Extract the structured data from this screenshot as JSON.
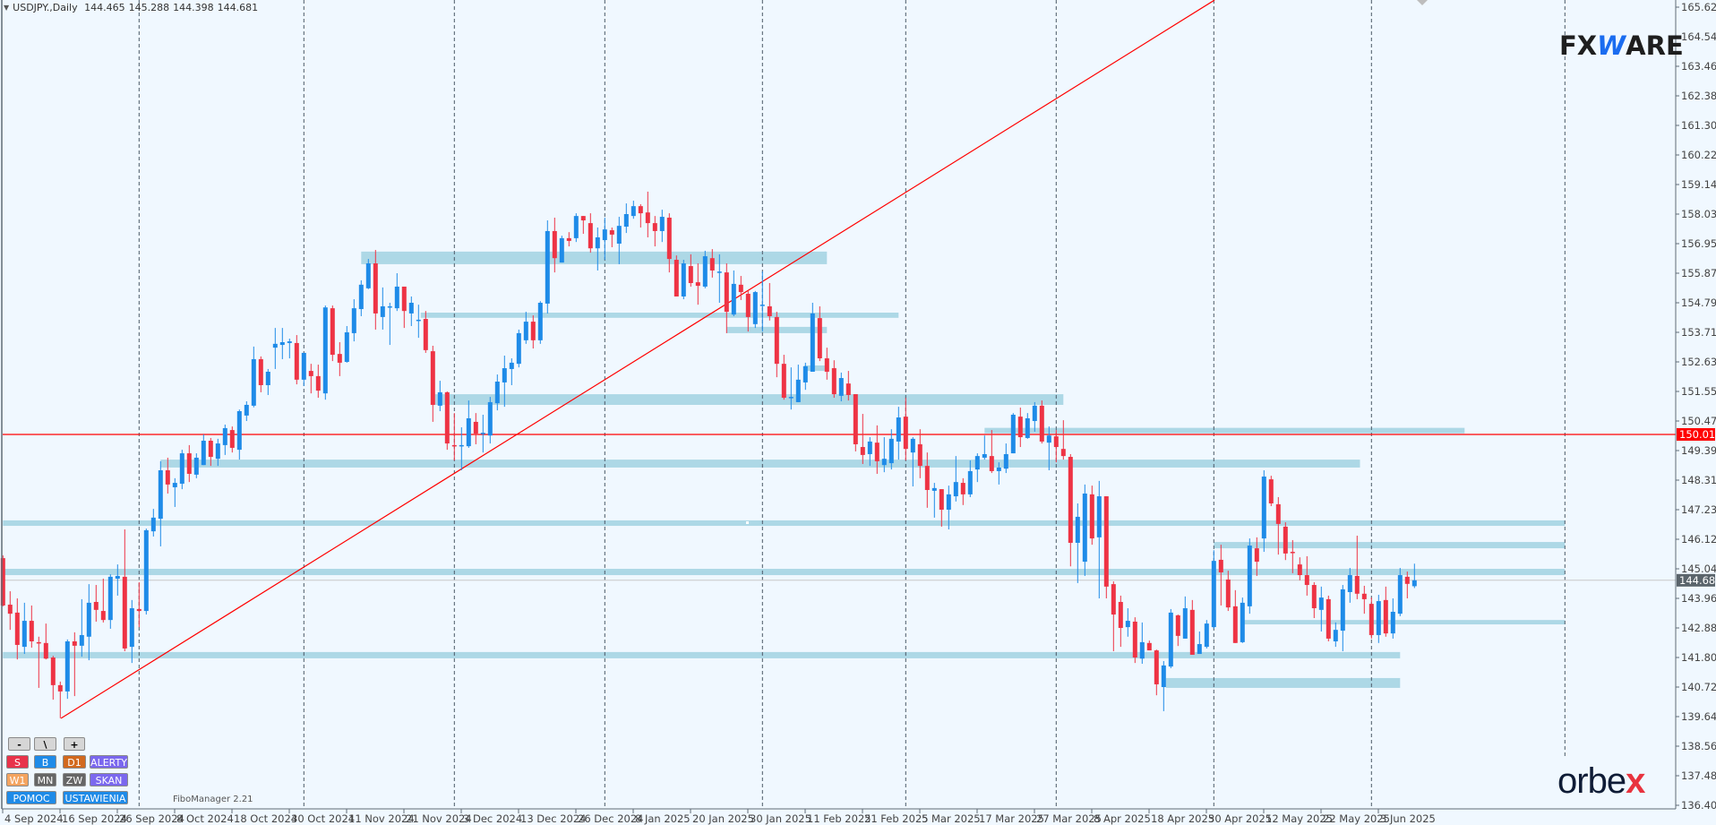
{
  "header": {
    "symbol": "USDJPY.,Daily",
    "open": "144.465",
    "high": "145.288",
    "low": "144.398",
    "close": "144.681"
  },
  "toolbar": {
    "zoom_out": "-",
    "line_tool": "\\",
    "zoom_in": "+",
    "sell": "S",
    "buy": "B",
    "d1": "D1",
    "alerts": "ALERTY",
    "w1": "W1",
    "mn": "MN",
    "zw": "ZW",
    "scan": "SKAN",
    "help": "POMOC",
    "settings": "USTAWIENIA"
  },
  "indicator_label": "FiboManager 2.21",
  "logos": {
    "fxware_a": "FX",
    "fxware_w": "W",
    "fxware_b": "ARE",
    "orbex_a": "orbe",
    "orbex_b": "x"
  },
  "colors": {
    "background": "#f0f8ff",
    "bull": "#1e8be8",
    "bear": "#ee3344",
    "zone": "#add8e6",
    "level_line": "#ff0000",
    "trendline": "#ff0000",
    "bid_line": "#c8c8c8",
    "grid": "#4a5866",
    "btn_sell": "#e8334a",
    "btn_buy": "#1e8be8",
    "btn_d1": "#d2691e",
    "btn_purple": "#7b68ee",
    "btn_w1": "#f4a460",
    "btn_gray": "#666666"
  },
  "chart_data": {
    "type": "candlestick",
    "title": "USDJPY., Daily",
    "ylim": [
      136.4,
      165.62
    ],
    "price_ticks": [
      "165.620",
      "164.540",
      "163.460",
      "162.380",
      "161.300",
      "160.220",
      "159.140",
      "158.030",
      "156.950",
      "155.870",
      "154.790",
      "153.710",
      "152.630",
      "151.550",
      "150.470",
      "149.390",
      "148.310",
      "147.230",
      "146.120",
      "145.040",
      "143.960",
      "142.880",
      "141.800",
      "140.720",
      "139.640",
      "138.560",
      "137.480",
      "136.400"
    ],
    "date_labels": [
      "4 Sep 2024",
      "16 Sep 2024",
      "26 Sep 2024",
      "8 Oct 2024",
      "18 Oct 2024",
      "30 Oct 2024",
      "11 Nov 2024",
      "21 Nov 2024",
      "3 Dec 2024",
      "13 Dec 2024",
      "26 Dec 2024",
      "8 Jan 2025",
      "20 Jan 2025",
      "30 Jan 2025",
      "11 Feb 2025",
      "21 Feb 2025",
      "5 Mar 2025",
      "17 Mar 2025",
      "27 Mar 2025",
      "8 Apr 2025",
      "18 Apr 2025",
      "30 Apr 2025",
      "12 May 2025",
      "22 May 2025",
      "3 Jun 2025"
    ],
    "date_label_every_bars": 8,
    "month_separators_bar": [
      19,
      42,
      63,
      84,
      106,
      126,
      147,
      169,
      191,
      218
    ],
    "level_line": {
      "price": 150.01,
      "label": "150.010"
    },
    "bid": {
      "price": 144.681,
      "label": "144.681"
    },
    "trendline": {
      "from": {
        "bar": 8.1,
        "price": 139.64
      },
      "to": {
        "bar": 169.1,
        "price": 165.88
      }
    },
    "zones": [
      {
        "from_bar": 50,
        "to_bar": 115,
        "low": 156.23,
        "high": 156.69
      },
      {
        "from_bar": 58.3,
        "to_bar": 125,
        "low": 154.27,
        "high": 154.46
      },
      {
        "from_bar": 101,
        "to_bar": 115,
        "low": 153.71,
        "high": 153.94
      },
      {
        "from_bar": 111.8,
        "to_bar": 115,
        "low": 152.33,
        "high": 152.53
      },
      {
        "from_bar": 60.3,
        "to_bar": 148,
        "low": 151.09,
        "high": 151.48
      },
      {
        "from_bar": 137,
        "to_bar": 204,
        "low": 150.05,
        "high": 150.25
      },
      {
        "from_bar": 22,
        "to_bar": 189.4,
        "low": 148.8,
        "high": 149.09
      },
      {
        "from_bar": 0,
        "to_bar": 218,
        "low": 146.67,
        "high": 146.87
      },
      {
        "from_bar": 169,
        "to_bar": 218,
        "low": 145.85,
        "high": 146.08
      },
      {
        "from_bar": 0,
        "to_bar": 218,
        "low": 144.87,
        "high": 145.1
      },
      {
        "from_bar": 172.7,
        "to_bar": 218,
        "low": 143.07,
        "high": 143.23
      },
      {
        "from_bar": 0,
        "to_bar": 195,
        "low": 141.83,
        "high": 142.06
      },
      {
        "from_bar": 162.3,
        "to_bar": 195,
        "low": 140.75,
        "high": 141.11
      }
    ],
    "ohlc_fields": [
      "open",
      "high",
      "low",
      "close"
    ],
    "ohlc": [
      [
        145.49,
        145.59,
        143.73,
        143.76
      ],
      [
        143.79,
        144.28,
        142.87,
        143.46
      ],
      [
        143.5,
        144.02,
        141.79,
        142.32
      ],
      [
        142.25,
        143.86,
        141.99,
        143.2
      ],
      [
        143.2,
        143.76,
        142.22,
        142.45
      ],
      [
        142.42,
        142.62,
        140.75,
        142.39
      ],
      [
        142.39,
        143.1,
        141.79,
        141.82
      ],
      [
        141.86,
        141.92,
        140.32,
        140.85
      ],
      [
        140.85,
        140.98,
        139.64,
        140.62
      ],
      [
        140.62,
        142.52,
        140.35,
        142.45
      ],
      [
        142.45,
        142.78,
        140.45,
        142.29
      ],
      [
        142.29,
        143.99,
        141.89,
        142.68
      ],
      [
        142.62,
        144.54,
        141.76,
        143.86
      ],
      [
        143.89,
        144.51,
        143.17,
        143.6
      ],
      [
        143.56,
        144.74,
        143.14,
        143.23
      ],
      [
        143.23,
        144.9,
        142.91,
        144.81
      ],
      [
        144.74,
        145.26,
        144.12,
        144.84
      ],
      [
        144.81,
        146.54,
        142.09,
        142.19
      ],
      [
        142.25,
        143.96,
        141.66,
        143.66
      ],
      [
        143.63,
        144.61,
        142.97,
        143.56
      ],
      [
        143.56,
        146.57,
        143.43,
        146.51
      ],
      [
        146.47,
        147.29,
        146.28,
        146.97
      ],
      [
        146.93,
        149.03,
        145.92,
        148.7
      ],
      [
        148.7,
        149.16,
        147.85,
        148.18
      ],
      [
        148.08,
        148.41,
        147.36,
        148.24
      ],
      [
        148.21,
        149.45,
        148.01,
        149.32
      ],
      [
        149.32,
        149.62,
        148.27,
        148.57
      ],
      [
        148.54,
        149.32,
        148.41,
        149.16
      ],
      [
        148.89,
        150.01,
        148.89,
        149.78
      ],
      [
        149.78,
        149.88,
        148.86,
        149.19
      ],
      [
        149.12,
        149.85,
        148.86,
        149.68
      ],
      [
        149.62,
        150.37,
        149.26,
        150.24
      ],
      [
        150.17,
        150.3,
        149.35,
        149.52
      ],
      [
        149.45,
        150.92,
        149.09,
        150.86
      ],
      [
        150.7,
        151.22,
        150.5,
        151.09
      ],
      [
        151.06,
        153.22,
        151.0,
        152.76
      ],
      [
        152.76,
        152.86,
        151.55,
        151.81
      ],
      [
        151.81,
        152.4,
        151.45,
        152.3
      ],
      [
        153.18,
        153.9,
        152.4,
        153.32
      ],
      [
        153.28,
        153.9,
        152.76,
        153.38
      ],
      [
        153.35,
        153.51,
        152.79,
        153.41
      ],
      [
        153.35,
        153.64,
        151.84,
        152.01
      ],
      [
        152.01,
        152.99,
        151.78,
        152.99
      ],
      [
        152.33,
        152.59,
        151.51,
        152.14
      ],
      [
        152.14,
        152.56,
        151.35,
        151.61
      ],
      [
        151.51,
        154.72,
        151.28,
        154.65
      ],
      [
        154.62,
        154.72,
        152.69,
        152.92
      ],
      [
        152.95,
        153.38,
        152.14,
        152.63
      ],
      [
        152.66,
        153.97,
        152.63,
        153.74
      ],
      [
        153.71,
        154.95,
        153.41,
        154.62
      ],
      [
        154.59,
        155.64,
        154.33,
        155.48
      ],
      [
        155.35,
        156.42,
        155.32,
        156.26
      ],
      [
        156.26,
        156.75,
        153.84,
        154.43
      ],
      [
        154.3,
        155.38,
        153.84,
        154.69
      ],
      [
        154.66,
        154.82,
        153.28,
        154.69
      ],
      [
        154.62,
        155.9,
        154.52,
        155.41
      ],
      [
        155.41,
        155.41,
        153.9,
        154.52
      ],
      [
        154.43,
        155.05,
        153.97,
        154.82
      ],
      [
        154.2,
        154.75,
        153.54,
        154.2
      ],
      [
        154.23,
        154.52,
        152.99,
        153.09
      ],
      [
        153.05,
        153.25,
        150.47,
        151.09
      ],
      [
        151.06,
        151.97,
        150.86,
        151.55
      ],
      [
        151.55,
        151.58,
        149.45,
        149.68
      ],
      [
        149.62,
        150.79,
        149.06,
        149.6
      ],
      [
        149.6,
        150.27,
        148.7,
        149.62
      ],
      [
        149.58,
        151.25,
        149.52,
        150.6
      ],
      [
        150.47,
        150.79,
        149.65,
        150.04
      ],
      [
        150.04,
        150.73,
        149.35,
        150.07
      ],
      [
        149.97,
        151.38,
        149.68,
        151.19
      ],
      [
        151.15,
        152.2,
        150.89,
        151.94
      ],
      [
        151.91,
        152.89,
        151.02,
        152.43
      ],
      [
        152.4,
        152.79,
        151.81,
        152.63
      ],
      [
        152.59,
        153.84,
        152.46,
        153.71
      ],
      [
        153.45,
        154.49,
        153.32,
        154.13
      ],
      [
        154.13,
        154.36,
        153.15,
        153.45
      ],
      [
        153.45,
        154.88,
        153.32,
        154.82
      ],
      [
        154.79,
        157.83,
        154.43,
        157.44
      ],
      [
        157.44,
        157.93,
        155.93,
        156.45
      ],
      [
        156.29,
        157.27,
        156.29,
        157.18
      ],
      [
        157.18,
        157.4,
        156.88,
        157.08
      ],
      [
        157.18,
        158.09,
        157.04,
        157.99
      ],
      [
        157.99,
        157.99,
        157.34,
        157.83
      ],
      [
        157.73,
        158.09,
        156.65,
        156.81
      ],
      [
        156.81,
        157.57,
        156.0,
        157.21
      ],
      [
        157.11,
        157.93,
        156.39,
        157.5
      ],
      [
        157.47,
        157.57,
        156.85,
        157.31
      ],
      [
        156.98,
        157.96,
        156.23,
        157.63
      ],
      [
        157.6,
        158.45,
        157.37,
        158.06
      ],
      [
        157.99,
        158.55,
        157.89,
        158.35
      ],
      [
        158.35,
        158.42,
        157.57,
        158.09
      ],
      [
        158.12,
        158.88,
        157.21,
        157.73
      ],
      [
        157.73,
        157.99,
        156.88,
        157.44
      ],
      [
        157.44,
        158.22,
        157.04,
        157.96
      ],
      [
        157.93,
        158.09,
        155.93,
        156.42
      ],
      [
        156.39,
        156.55,
        155.05,
        155.05
      ],
      [
        155.05,
        156.39,
        154.95,
        156.26
      ],
      [
        156.16,
        156.59,
        155.41,
        155.54
      ],
      [
        155.57,
        156.26,
        154.75,
        155.44
      ],
      [
        155.41,
        156.72,
        155.35,
        156.52
      ],
      [
        156.45,
        156.78,
        155.74,
        156.0
      ],
      [
        155.93,
        156.59,
        154.82,
        155.96
      ],
      [
        155.93,
        156.26,
        153.71,
        154.49
      ],
      [
        154.39,
        156.0,
        154.33,
        155.51
      ],
      [
        155.48,
        155.8,
        154.92,
        155.21
      ],
      [
        155.15,
        155.25,
        153.77,
        154.3
      ],
      [
        154.04,
        155.25,
        153.9,
        155.21
      ],
      [
        154.75,
        155.96,
        153.77,
        154.75
      ],
      [
        154.69,
        155.54,
        154.17,
        154.33
      ],
      [
        154.3,
        154.49,
        152.1,
        152.59
      ],
      [
        152.59,
        152.92,
        151.28,
        151.35
      ],
      [
        151.35,
        152.46,
        150.92,
        151.38
      ],
      [
        151.19,
        152.56,
        151.19,
        152.01
      ],
      [
        151.91,
        152.63,
        151.64,
        152.5
      ],
      [
        152.3,
        154.82,
        152.3,
        154.43
      ],
      [
        154.26,
        154.69,
        152.69,
        152.79
      ],
      [
        152.79,
        153.18,
        152.01,
        152.3
      ],
      [
        152.43,
        152.72,
        151.35,
        151.48
      ],
      [
        151.42,
        152.27,
        151.22,
        152.07
      ],
      [
        151.87,
        152.33,
        151.25,
        151.45
      ],
      [
        151.48,
        151.48,
        149.39,
        149.65
      ],
      [
        149.55,
        150.76,
        148.93,
        149.26
      ],
      [
        149.29,
        149.91,
        148.86,
        149.75
      ],
      [
        149.71,
        150.34,
        148.57,
        149.03
      ],
      [
        148.89,
        149.91,
        148.63,
        149.12
      ],
      [
        148.96,
        150.2,
        148.73,
        149.85
      ],
      [
        149.75,
        151.02,
        149.09,
        150.63
      ],
      [
        150.66,
        151.35,
        149.06,
        149.48
      ],
      [
        149.35,
        149.91,
        148.11,
        149.85
      ],
      [
        149.65,
        150.2,
        148.41,
        148.86
      ],
      [
        148.86,
        149.35,
        147.33,
        147.98
      ],
      [
        147.95,
        148.24,
        146.97,
        148.05
      ],
      [
        148.01,
        148.01,
        146.64,
        147.26
      ],
      [
        147.26,
        148.14,
        146.54,
        147.82
      ],
      [
        147.75,
        149.22,
        147.56,
        148.27
      ],
      [
        148.24,
        148.41,
        147.43,
        147.82
      ],
      [
        147.82,
        149.06,
        147.72,
        148.67
      ],
      [
        148.73,
        149.32,
        148.27,
        149.22
      ],
      [
        149.16,
        149.97,
        149.09,
        149.29
      ],
      [
        149.22,
        150.17,
        148.6,
        148.67
      ],
      [
        148.67,
        148.99,
        148.18,
        148.8
      ],
      [
        148.76,
        149.68,
        148.6,
        149.29
      ],
      [
        149.32,
        150.79,
        149.32,
        150.73
      ],
      [
        150.66,
        150.99,
        149.55,
        149.91
      ],
      [
        149.88,
        150.79,
        149.85,
        150.6
      ],
      [
        150.5,
        151.19,
        150.11,
        151.06
      ],
      [
        151.06,
        151.25,
        149.68,
        149.75
      ],
      [
        149.71,
        150.3,
        148.7,
        149.97
      ],
      [
        149.94,
        150.17,
        148.99,
        149.55
      ],
      [
        149.48,
        150.53,
        149.09,
        149.22
      ],
      [
        149.19,
        149.29,
        145.19,
        146.05
      ],
      [
        146.05,
        147.49,
        144.58,
        147.0
      ],
      [
        145.36,
        148.18,
        144.84,
        147.85
      ],
      [
        147.82,
        148.14,
        145.98,
        146.21
      ],
      [
        146.25,
        148.31,
        144.02,
        147.75
      ],
      [
        147.75,
        147.75,
        144.02,
        144.45
      ],
      [
        144.54,
        144.64,
        142.09,
        143.43
      ],
      [
        143.89,
        144.12,
        142.25,
        142.94
      ],
      [
        142.97,
        143.66,
        142.62,
        143.2
      ],
      [
        143.17,
        143.33,
        141.66,
        141.86
      ],
      [
        141.82,
        143.14,
        141.63,
        142.42
      ],
      [
        142.39,
        142.48,
        142.12,
        142.12
      ],
      [
        142.12,
        142.15,
        140.48,
        140.88
      ],
      [
        140.78,
        141.73,
        139.9,
        141.57
      ],
      [
        141.53,
        143.63,
        141.47,
        143.5
      ],
      [
        143.4,
        143.43,
        142.28,
        142.65
      ],
      [
        142.55,
        144.09,
        142.55,
        143.66
      ],
      [
        143.6,
        143.96,
        141.96,
        141.96
      ],
      [
        141.99,
        142.81,
        141.99,
        142.35
      ],
      [
        142.25,
        143.23,
        142.19,
        143.1
      ],
      [
        142.97,
        145.78,
        142.91,
        145.39
      ],
      [
        145.43,
        145.98,
        143.76,
        144.97
      ],
      [
        144.71,
        145.03,
        143.56,
        143.69
      ],
      [
        143.73,
        144.32,
        142.39,
        142.39
      ],
      [
        142.42,
        144.05,
        142.39,
        143.86
      ],
      [
        143.73,
        146.21,
        143.46,
        145.95
      ],
      [
        145.85,
        146.25,
        144.84,
        145.36
      ],
      [
        146.21,
        148.7,
        145.72,
        148.47
      ],
      [
        148.37,
        148.5,
        147.39,
        147.49
      ],
      [
        147.46,
        147.72,
        145.62,
        146.74
      ],
      [
        146.64,
        146.8,
        145.42,
        145.66
      ],
      [
        145.72,
        146.15,
        144.94,
        145.69
      ],
      [
        145.26,
        145.52,
        144.68,
        144.87
      ],
      [
        144.87,
        145.56,
        144.12,
        144.51
      ],
      [
        144.51,
        144.61,
        143.3,
        143.66
      ],
      [
        143.6,
        144.45,
        142.81,
        144.05
      ],
      [
        143.99,
        144.12,
        142.45,
        142.55
      ],
      [
        142.45,
        143.14,
        142.25,
        142.87
      ],
      [
        142.84,
        144.51,
        142.09,
        144.35
      ],
      [
        144.25,
        145.13,
        143.86,
        144.87
      ],
      [
        144.84,
        146.31,
        143.99,
        144.19
      ],
      [
        144.19,
        144.48,
        143.46,
        143.99
      ],
      [
        143.82,
        144.05,
        142.55,
        142.68
      ],
      [
        142.68,
        144.15,
        142.39,
        143.92
      ],
      [
        143.96,
        144.45,
        142.62,
        142.74
      ],
      [
        142.74,
        144.02,
        142.55,
        143.53
      ],
      [
        143.46,
        145.13,
        143.37,
        144.87
      ],
      [
        144.81,
        145.0,
        144.02,
        144.55
      ],
      [
        144.465,
        145.288,
        144.398,
        144.681
      ]
    ]
  }
}
